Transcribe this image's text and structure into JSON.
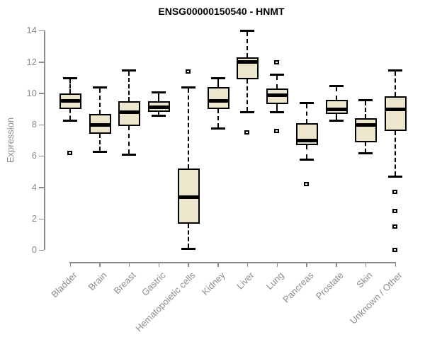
{
  "chart_data": {
    "type": "boxplot",
    "title": "ENSG00000150540 - HNMT",
    "xlabel": "",
    "ylabel": "Expression",
    "ylim": [
      0,
      14
    ],
    "yticks": [
      0,
      2,
      4,
      6,
      8,
      10,
      12,
      14
    ],
    "grid": false,
    "legend": "none",
    "categories": [
      "Bladder",
      "Brain",
      "Breast",
      "Gastric",
      "Hematopoietic cells",
      "Kidney",
      "Liver",
      "Lung",
      "Pancreas",
      "Prostate",
      "Skin",
      "Unknown / Other"
    ],
    "series": [
      {
        "name": "Bladder",
        "whisker_low": 8.3,
        "q1": 9.0,
        "median": 9.5,
        "q3": 10.0,
        "whisker_high": 11.0,
        "outliers": [
          6.2
        ]
      },
      {
        "name": "Brain",
        "whisker_low": 6.3,
        "q1": 7.4,
        "median": 8.0,
        "q3": 8.7,
        "whisker_high": 10.4,
        "outliers": []
      },
      {
        "name": "Breast",
        "whisker_low": 6.1,
        "q1": 7.9,
        "median": 8.8,
        "q3": 9.5,
        "whisker_high": 11.5,
        "outliers": []
      },
      {
        "name": "Gastric",
        "whisker_low": 8.6,
        "q1": 8.8,
        "median": 9.1,
        "q3": 9.5,
        "whisker_high": 10.1,
        "outliers": []
      },
      {
        "name": "Hematopoietic cells",
        "whisker_low": 0.1,
        "q1": 1.7,
        "median": 3.4,
        "q3": 5.2,
        "whisker_high": 10.4,
        "outliers": [
          11.4
        ]
      },
      {
        "name": "Kidney",
        "whisker_low": 7.8,
        "q1": 9.0,
        "median": 9.5,
        "q3": 10.4,
        "whisker_high": 11.0,
        "outliers": []
      },
      {
        "name": "Liver",
        "whisker_low": 8.8,
        "q1": 10.9,
        "median": 12.0,
        "q3": 12.3,
        "whisker_high": 14.0,
        "outliers": [
          7.5
        ]
      },
      {
        "name": "Lung",
        "whisker_low": 8.8,
        "q1": 9.3,
        "median": 9.9,
        "q3": 10.3,
        "whisker_high": 11.2,
        "outliers": [
          12.0,
          7.6
        ]
      },
      {
        "name": "Pancreas",
        "whisker_low": 5.8,
        "q1": 6.7,
        "median": 7.0,
        "q3": 8.1,
        "whisker_high": 9.4,
        "outliers": [
          4.2
        ]
      },
      {
        "name": "Prostate",
        "whisker_low": 8.3,
        "q1": 8.7,
        "median": 9.0,
        "q3": 9.6,
        "whisker_high": 10.5,
        "outliers": []
      },
      {
        "name": "Skin",
        "whisker_low": 6.2,
        "q1": 6.9,
        "median": 8.0,
        "q3": 8.4,
        "whisker_high": 9.6,
        "outliers": []
      },
      {
        "name": "Unknown / Other",
        "whisker_low": 4.7,
        "q1": 7.6,
        "median": 9.0,
        "q3": 9.8,
        "whisker_high": 11.5,
        "outliers": [
          3.7,
          2.5,
          1.5,
          0.0
        ]
      }
    ]
  },
  "colors": {
    "box_fill": "#ECE6CD",
    "box_border": "#000000",
    "median": "#000000",
    "axis": "#8C8C8C",
    "title": "#000000",
    "background": "#FFFFFF"
  }
}
